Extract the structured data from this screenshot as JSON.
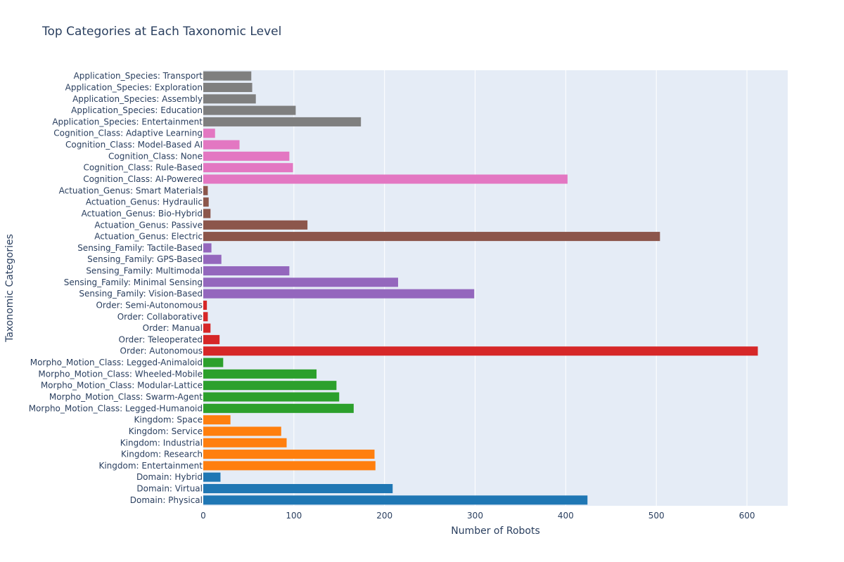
{
  "chart_data": {
    "type": "bar",
    "orientation": "horizontal",
    "title": "Top Categories at Each Taxonomic Level",
    "xlabel": "Number of Robots",
    "ylabel": "Taxonomic Categories",
    "xlim": [
      0,
      645
    ],
    "xticks": [
      "0",
      "100",
      "200",
      "300",
      "400",
      "500",
      "600"
    ],
    "grid": true,
    "categories": [
      "Domain: Physical",
      "Domain: Virtual",
      "Domain: Hybrid",
      "Kingdom: Entertainment",
      "Kingdom: Research",
      "Kingdom: Industrial",
      "Kingdom: Service",
      "Kingdom: Space",
      "Morpho_Motion_Class: Legged-Humanoid",
      "Morpho_Motion_Class: Swarm-Agent",
      "Morpho_Motion_Class: Modular-Lattice",
      "Morpho_Motion_Class: Wheeled-Mobile",
      "Morpho_Motion_Class: Legged-Animaloid",
      "Order: Autonomous",
      "Order: Teleoperated",
      "Order: Manual",
      "Order: Collaborative",
      "Order: Semi-Autonomous",
      "Sensing_Family: Vision-Based",
      "Sensing_Family: Minimal Sensing",
      "Sensing_Family: Multimodal",
      "Sensing_Family: GPS-Based",
      "Sensing_Family: Tactile-Based",
      "Actuation_Genus: Electric",
      "Actuation_Genus: Passive",
      "Actuation_Genus: Bio-Hybrid",
      "Actuation_Genus: Hydraulic",
      "Actuation_Genus: Smart Materials",
      "Cognition_Class: AI-Powered",
      "Cognition_Class: Rule-Based",
      "Cognition_Class: None",
      "Cognition_Class: Model-Based AI",
      "Cognition_Class: Adaptive Learning",
      "Application_Species: Entertainment",
      "Application_Species: Education",
      "Application_Species: Assembly",
      "Application_Species: Exploration",
      "Application_Species: Transport"
    ],
    "values": [
      424,
      209,
      19,
      190,
      189,
      92,
      86,
      30,
      166,
      150,
      147,
      125,
      22,
      612,
      18,
      8,
      5,
      4,
      299,
      215,
      95,
      20,
      9,
      504,
      115,
      8,
      6,
      5,
      402,
      99,
      95,
      40,
      13,
      174,
      102,
      58,
      54,
      53
    ],
    "colors": [
      "#1f77b4",
      "#1f77b4",
      "#1f77b4",
      "#ff7f0e",
      "#ff7f0e",
      "#ff7f0e",
      "#ff7f0e",
      "#ff7f0e",
      "#2ca02c",
      "#2ca02c",
      "#2ca02c",
      "#2ca02c",
      "#2ca02c",
      "#d62728",
      "#d62728",
      "#d62728",
      "#d62728",
      "#d62728",
      "#9467bd",
      "#9467bd",
      "#9467bd",
      "#9467bd",
      "#9467bd",
      "#8c564b",
      "#8c564b",
      "#8c564b",
      "#8c564b",
      "#8c564b",
      "#e377c2",
      "#e377c2",
      "#e377c2",
      "#e377c2",
      "#e377c2",
      "#7f7f7f",
      "#7f7f7f",
      "#7f7f7f",
      "#7f7f7f",
      "#7f7f7f"
    ],
    "plot_bg": "#e5ecf6",
    "grid_color": "#ffffff",
    "text_color": "#2a3f5f"
  }
}
